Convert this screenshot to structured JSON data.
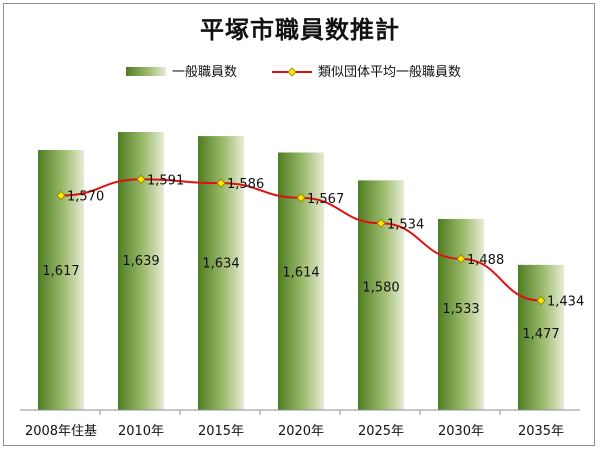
{
  "chart_data": {
    "type": "bar",
    "title": "平塚市職員数推計",
    "categories": [
      "2008年住基",
      "2010年",
      "2015年",
      "2020年",
      "2025年",
      "2030年",
      "2035年"
    ],
    "series": [
      {
        "name": "一般職員数",
        "type": "bar",
        "values": [
          1617,
          1639,
          1634,
          1614,
          1580,
          1533,
          1477
        ],
        "labels": [
          "1,617",
          "1,639",
          "1,634",
          "1,614",
          "1,580",
          "1,533",
          "1,477"
        ]
      },
      {
        "name": "類似団体平均一般職員数",
        "type": "line",
        "values": [
          1570,
          1591,
          1586,
          1567,
          1534,
          1488,
          1434
        ],
        "labels": [
          "1,570",
          "1,591",
          "1,586",
          "1,567",
          "1,534",
          "1,488",
          "1,434"
        ]
      }
    ],
    "ylim": [
      1300,
      1660
    ],
    "legend": "top",
    "grid": false,
    "colors": {
      "bar_dark": "#4e7d22",
      "bar_light": "#e6ecd6",
      "line": "#e01010",
      "marker": "#ffe600"
    }
  }
}
